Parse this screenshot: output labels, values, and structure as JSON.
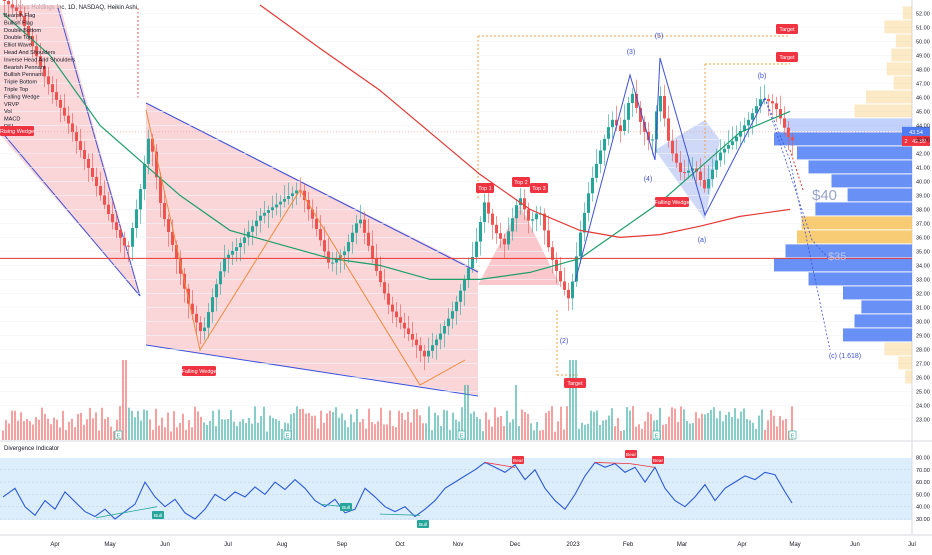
{
  "header": {
    "title": "Celsius Holdings Inc, 1D, NASDAQ, Heikin Ashi"
  },
  "pattern_list": [
    "Bearish Flag",
    "Bullish Flag",
    "Double Bottom",
    "Double Top",
    "Elliot Wave",
    "Head And Shoulders",
    "Inverse Head And Shoulders",
    "Bearish Pennant",
    "Bullish Pennant",
    "Triple Bottom",
    "Triple Top",
    "Falling Wedge",
    "VRVP",
    "Vol",
    "MACD",
    "RSI"
  ],
  "labels": {
    "falling_wedge": "Falling Wedge",
    "rising_wedge": "Rising Wedge",
    "top1": "Top 1",
    "top2": "Top 2",
    "top3": "Top 3",
    "target": "Target",
    "bull": "Bull",
    "bear": "Bear",
    "forty": "$40",
    "thirty_five": "$35",
    "wave_2": "(2)",
    "wave_3": "(3)",
    "wave_4": "(4)",
    "wave_5": "(5)",
    "wave_a": "(a)",
    "wave_b": "(b)",
    "wave_c": "(c) (1.618)",
    "event_e": "E",
    "divergence": "Divergence Indicator"
  },
  "price_badges": {
    "current": "43.54",
    "close": "42.89",
    "marker": "2"
  },
  "price_axis": {
    "ticks": [
      52.0,
      51.0,
      50.0,
      49.0,
      48.0,
      47.0,
      46.0,
      45.0,
      44.0,
      43.0,
      42.0,
      41.0,
      40.0,
      39.0,
      38.0,
      37.0,
      36.0,
      35.0,
      34.0,
      33.0,
      32.0,
      31.0,
      30.0,
      29.0,
      28.0,
      27.0,
      26.0,
      25.0,
      24.0,
      23.0
    ],
    "labels": [
      "52.00",
      "51.00",
      "50.00",
      "49.00",
      "48.00",
      "47.00",
      "46.00",
      "45.00",
      "44.00",
      "43.00",
      "42.00",
      "41.00",
      "40.00",
      "39.00",
      "38.00",
      "37.00",
      "36.00",
      "35.00",
      "34.00",
      "33.00",
      "32.00",
      "31.00",
      "30.00",
      "29.00",
      "28.00",
      "27.00",
      "26.00",
      "25.00",
      "24.00",
      "23.00"
    ]
  },
  "osc_axis": {
    "ticks": [
      80,
      70,
      60,
      50,
      40,
      30
    ],
    "labels": [
      "80.00",
      "70.00",
      "60.00",
      "50.00",
      "40.00",
      "30.00"
    ]
  },
  "time_axis": [
    "Apr",
    "May",
    "Jun",
    "Jul",
    "Aug",
    "Sep",
    "Oct",
    "Nov",
    "Dec",
    "2023",
    "Feb",
    "Mar",
    "Apr",
    "May",
    "Jun",
    "Jul"
  ],
  "colors": {
    "up": "#26a69a",
    "down": "#ef5350",
    "wedge_fill": "#f8c8cc",
    "wedge_line": "#3f51d8",
    "ma_green": "#1e9e6a",
    "ma_red": "#e53935",
    "vrvp_blue": "#4f7cf3",
    "vrvp_orange": "#f7c35c",
    "osc_line": "#2e5bd6",
    "osc_band": "#dceefb",
    "label_red": "#ef3340"
  },
  "chart_data": [
    {
      "type": "candlestick",
      "title": "Celsius Holdings Inc, 1D, NASDAQ, Heikin Ashi",
      "x": [
        "Apr",
        "May",
        "Jun",
        "Jul",
        "Aug",
        "Sep",
        "Oct",
        "Nov",
        "Dec",
        "2023",
        "Feb",
        "Mar",
        "Apr",
        "May",
        "Jun",
        "Jul"
      ],
      "ylim": [
        22.5,
        52.6
      ],
      "close_path": [
        [
          3,
          53.0
        ],
        [
          20,
          52.0
        ],
        [
          45,
          47.5
        ],
        [
          70,
          44.0
        ],
        [
          95,
          40.0
        ],
        [
          110,
          37.5
        ],
        [
          128,
          35.0
        ],
        [
          140,
          39.0
        ],
        [
          150,
          43.5
        ],
        [
          162,
          38.0
        ],
        [
          175,
          35.0
        ],
        [
          190,
          31.0
        ],
        [
          203,
          29.0
        ],
        [
          212,
          31.5
        ],
        [
          225,
          34.5
        ],
        [
          240,
          35.5
        ],
        [
          260,
          37.5
        ],
        [
          280,
          38.5
        ],
        [
          300,
          39.5
        ],
        [
          315,
          37.0
        ],
        [
          330,
          34.0
        ],
        [
          345,
          35.0
        ],
        [
          360,
          37.5
        ],
        [
          375,
          34.0
        ],
        [
          390,
          31.0
        ],
        [
          405,
          29.5
        ],
        [
          425,
          27.5
        ],
        [
          440,
          29.0
        ],
        [
          455,
          31.0
        ],
        [
          465,
          33.0
        ],
        [
          475,
          35.0
        ],
        [
          485,
          38.5
        ],
        [
          495,
          36.5
        ],
        [
          505,
          35.5
        ],
        [
          520,
          39.0
        ],
        [
          530,
          37.0
        ],
        [
          540,
          38.0
        ],
        [
          550,
          35.0
        ],
        [
          560,
          33.0
        ],
        [
          570,
          31.5
        ],
        [
          580,
          36.0
        ],
        [
          590,
          39.5
        ],
        [
          600,
          42.0
        ],
        [
          612,
          44.5
        ],
        [
          622,
          43.5
        ],
        [
          632,
          46.5
        ],
        [
          642,
          44.0
        ],
        [
          652,
          42.5
        ],
        [
          660,
          46.5
        ],
        [
          670,
          42.5
        ],
        [
          682,
          40.5
        ],
        [
          695,
          41.0
        ],
        [
          705,
          39.5
        ],
        [
          720,
          42.0
        ],
        [
          735,
          43.0
        ],
        [
          750,
          44.5
        ],
        [
          762,
          46.0
        ],
        [
          775,
          45.5
        ],
        [
          790,
          43.0
        ],
        [
          795,
          42.9
        ]
      ],
      "ma_green": [
        [
          3,
          52.0
        ],
        [
          50,
          49.0
        ],
        [
          100,
          44.0
        ],
        [
          140,
          41.5
        ],
        [
          180,
          39.0
        ],
        [
          230,
          36.5
        ],
        [
          280,
          35.5
        ],
        [
          330,
          34.5
        ],
        [
          380,
          34.0
        ],
        [
          430,
          33.0
        ],
        [
          480,
          33.0
        ],
        [
          530,
          33.5
        ],
        [
          580,
          34.5
        ],
        [
          620,
          36.5
        ],
        [
          660,
          38.5
        ],
        [
          700,
          41.0
        ],
        [
          740,
          43.5
        ],
        [
          790,
          45.0
        ]
      ],
      "ma_red": [
        [
          260,
          52.6
        ],
        [
          320,
          49.5
        ],
        [
          380,
          46.5
        ],
        [
          430,
          43.5
        ],
        [
          480,
          40.5
        ],
        [
          530,
          38.0
        ],
        [
          580,
          36.5
        ],
        [
          620,
          36.0
        ],
        [
          660,
          36.2
        ],
        [
          700,
          36.8
        ],
        [
          740,
          37.5
        ],
        [
          790,
          38.0
        ]
      ],
      "elliott_waves": [
        "(2)",
        "(3)",
        "(4)",
        "(5)",
        "(a)",
        "(b)",
        "(c) (1.618)"
      ],
      "annotations": [
        "$40",
        "$35",
        "Target",
        "Top 1",
        "Top 2",
        "Top 3",
        "Falling Wedge",
        "Rising Wedge"
      ],
      "horizontal_levels": [
        34.5,
        43.54,
        42.89
      ],
      "vrvp_bins": [
        {
          "price": 52.0,
          "share": 0.04
        },
        {
          "price": 51.0,
          "share": 0.12
        },
        {
          "price": 50.0,
          "share": 0.07
        },
        {
          "price": 49.0,
          "share": 0.09
        },
        {
          "price": 48.0,
          "share": 0.11
        },
        {
          "price": 47.0,
          "share": 0.08
        },
        {
          "price": 46.0,
          "share": 0.2
        },
        {
          "price": 45.0,
          "share": 0.25
        },
        {
          "price": 44.0,
          "share": 0.55
        },
        {
          "price": 43.0,
          "share": 0.6
        },
        {
          "price": 42.0,
          "share": 0.5
        },
        {
          "price": 41.0,
          "share": 0.45
        },
        {
          "price": 40.0,
          "share": 0.35
        },
        {
          "price": 39.0,
          "share": 0.28
        },
        {
          "price": 38.0,
          "share": 0.42
        },
        {
          "price": 37.0,
          "share": 0.48
        },
        {
          "price": 36.0,
          "share": 0.5
        },
        {
          "price": 35.0,
          "share": 0.55
        },
        {
          "price": 34.0,
          "share": 0.6
        },
        {
          "price": 33.0,
          "share": 0.45
        },
        {
          "price": 32.0,
          "share": 0.3
        },
        {
          "price": 31.0,
          "share": 0.22
        },
        {
          "price": 30.0,
          "share": 0.25
        },
        {
          "price": 29.0,
          "share": 0.3
        },
        {
          "price": 28.0,
          "share": 0.12
        },
        {
          "price": 27.0,
          "share": 0.06
        },
        {
          "price": 26.0,
          "share": 0.03
        }
      ]
    },
    {
      "type": "line",
      "title": "Divergence Indicator",
      "x": [
        "Apr",
        "May",
        "Jun",
        "Jul",
        "Aug",
        "Sep",
        "Oct",
        "Nov",
        "Dec",
        "2023",
        "Feb",
        "Mar",
        "Apr",
        "May",
        "Jun",
        "Jul"
      ],
      "ylim": [
        25,
        82
      ],
      "series": [
        {
          "values": [
            [
              3,
              48
            ],
            [
              15,
              55
            ],
            [
              25,
              40
            ],
            [
              35,
              33
            ],
            [
              45,
              45
            ],
            [
              55,
              38
            ],
            [
              65,
              52
            ],
            [
              75,
              44
            ],
            [
              85,
              36
            ],
            [
              95,
              32
            ],
            [
              105,
              38
            ],
            [
              115,
              30
            ],
            [
              125,
              36
            ],
            [
              135,
              42
            ],
            [
              145,
              60
            ],
            [
              155,
              48
            ],
            [
              165,
              40
            ],
            [
              175,
              46
            ],
            [
              185,
              35
            ],
            [
              195,
              30
            ],
            [
              205,
              38
            ],
            [
              215,
              50
            ],
            [
              225,
              45
            ],
            [
              235,
              52
            ],
            [
              245,
              48
            ],
            [
              255,
              56
            ],
            [
              265,
              50
            ],
            [
              275,
              60
            ],
            [
              285,
              54
            ],
            [
              295,
              62
            ],
            [
              305,
              55
            ],
            [
              315,
              45
            ],
            [
              325,
              40
            ],
            [
              335,
              46
            ],
            [
              345,
              35
            ],
            [
              355,
              38
            ],
            [
              365,
              55
            ],
            [
              375,
              48
            ],
            [
              385,
              40
            ],
            [
              395,
              36
            ],
            [
              405,
              40
            ],
            [
              415,
              32
            ],
            [
              425,
              38
            ],
            [
              435,
              45
            ],
            [
              445,
              55
            ],
            [
              455,
              60
            ],
            [
              465,
              65
            ],
            [
              475,
              70
            ],
            [
              485,
              76
            ],
            [
              495,
              72
            ],
            [
              505,
              68
            ],
            [
              515,
              74
            ],
            [
              525,
              62
            ],
            [
              535,
              70
            ],
            [
              545,
              55
            ],
            [
              555,
              45
            ],
            [
              565,
              38
            ],
            [
              575,
              50
            ],
            [
              585,
              65
            ],
            [
              595,
              76
            ],
            [
              605,
              72
            ],
            [
              615,
              75
            ],
            [
              625,
              68
            ],
            [
              635,
              72
            ],
            [
              645,
              60
            ],
            [
              655,
              72
            ],
            [
              665,
              55
            ],
            [
              675,
              45
            ],
            [
              685,
              40
            ],
            [
              695,
              48
            ],
            [
              705,
              58
            ],
            [
              715,
              45
            ],
            [
              725,
              55
            ],
            [
              735,
              60
            ],
            [
              745,
              65
            ],
            [
              755,
              62
            ],
            [
              765,
              68
            ],
            [
              775,
              66
            ],
            [
              785,
              52
            ],
            [
              792,
              43
            ]
          ]
        }
      ]
    }
  ]
}
